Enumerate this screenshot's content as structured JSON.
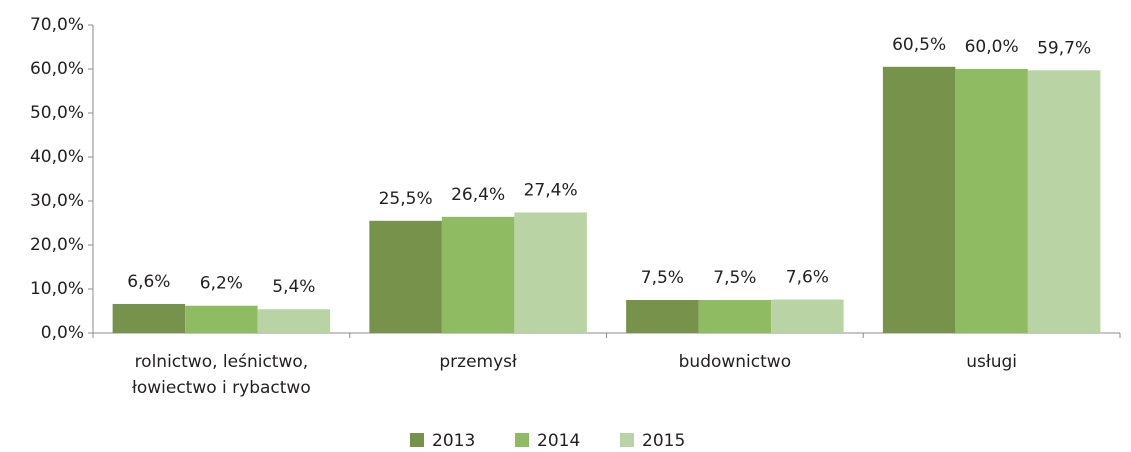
{
  "chart_data": {
    "type": "bar",
    "categories": [
      "rolnictwo, leśnictwo, łowiectwo i rybactwo",
      "przemysł",
      "budownictwo",
      "usługi"
    ],
    "series": [
      {
        "name": "2013",
        "color": "#76924b",
        "values": [
          6.6,
          25.5,
          7.5,
          60.5
        ],
        "value_labels": [
          "6,6%",
          "25,5%",
          "7,5%",
          "60,5%"
        ]
      },
      {
        "name": "2014",
        "color": "#8fbc62",
        "values": [
          6.2,
          26.4,
          7.5,
          60.0
        ],
        "value_labels": [
          "6,2%",
          "26,4%",
          "7,5%",
          "60,0%"
        ]
      },
      {
        "name": "2015",
        "color": "#bad3a5",
        "values": [
          5.4,
          27.4,
          7.6,
          59.7
        ],
        "value_labels": [
          "5,4%",
          "27,4%",
          "7,6%",
          "59,7%"
        ]
      }
    ],
    "ylim": [
      0,
      70
    ],
    "yticks": [
      {
        "value": 0,
        "label": "0,0%"
      },
      {
        "value": 10,
        "label": "10,0%"
      },
      {
        "value": 20,
        "label": "20,0%"
      },
      {
        "value": 30,
        "label": "30,0%"
      },
      {
        "value": 40,
        "label": "40,0%"
      },
      {
        "value": 50,
        "label": "50,0%"
      },
      {
        "value": 60,
        "label": "60,0%"
      },
      {
        "value": 70,
        "label": "70,0%"
      }
    ],
    "legend": "bottom"
  }
}
